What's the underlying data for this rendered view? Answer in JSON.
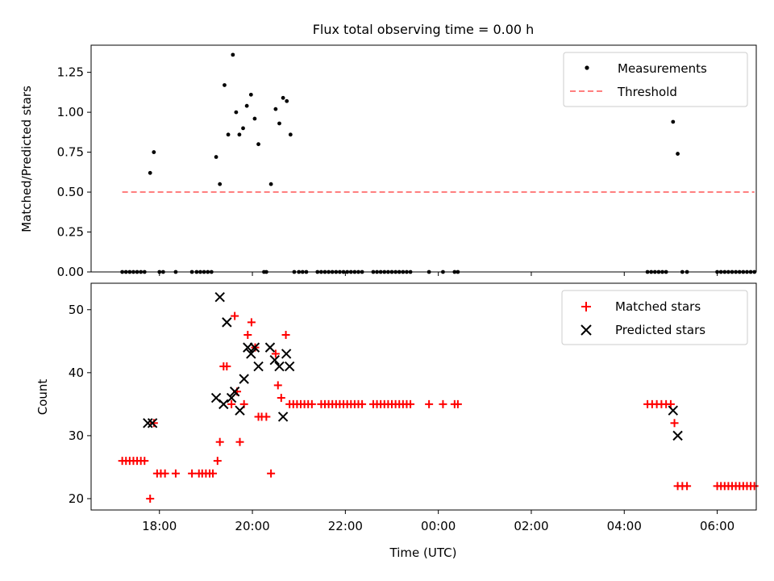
{
  "chart_data": [
    {
      "type": "scatter",
      "title": "Flux total observing time = 0.00 h",
      "xlabel": "",
      "ylabel": "Matched/Predicted stars",
      "ylim": [
        0,
        1.42
      ],
      "xlim_hours": [
        16.53,
        30.84
      ],
      "yticks": [
        "0.00",
        "0.25",
        "0.50",
        "0.75",
        "1.00",
        "1.25"
      ],
      "yticks_values": [
        0,
        0.25,
        0.5,
        0.75,
        1.0,
        1.25
      ],
      "legend": {
        "position": "top-right",
        "entries": [
          "Measurements",
          "Threshold"
        ]
      },
      "threshold": {
        "name": "Threshold",
        "value": 0.5,
        "x_range": [
          17.2,
          30.8
        ],
        "color": "#ff7f7f"
      },
      "series": [
        {
          "name": "Measurements",
          "color": "#000000",
          "marker": "dot",
          "points": [
            [
              17.2,
              0
            ],
            [
              17.28,
              0
            ],
            [
              17.36,
              0
            ],
            [
              17.44,
              0
            ],
            [
              17.52,
              0
            ],
            [
              17.6,
              0
            ],
            [
              17.68,
              0
            ],
            [
              17.8,
              0.62
            ],
            [
              17.88,
              0.75
            ],
            [
              18.0,
              0
            ],
            [
              18.08,
              0
            ],
            [
              18.35,
              0
            ],
            [
              18.7,
              0
            ],
            [
              18.8,
              0
            ],
            [
              18.88,
              0
            ],
            [
              18.96,
              0
            ],
            [
              19.04,
              0
            ],
            [
              19.12,
              0
            ],
            [
              19.22,
              0.72
            ],
            [
              19.3,
              0.55
            ],
            [
              19.4,
              1.17
            ],
            [
              19.48,
              0.86
            ],
            [
              19.58,
              1.36
            ],
            [
              19.65,
              1.0
            ],
            [
              19.72,
              0.86
            ],
            [
              19.8,
              0.9
            ],
            [
              19.88,
              1.04
            ],
            [
              19.97,
              1.11
            ],
            [
              20.05,
              0.96
            ],
            [
              20.13,
              0.8
            ],
            [
              20.25,
              0
            ],
            [
              20.3,
              0
            ],
            [
              20.4,
              0.55
            ],
            [
              20.5,
              1.02
            ],
            [
              20.58,
              0.93
            ],
            [
              20.66,
              1.09
            ],
            [
              20.74,
              1.07
            ],
            [
              20.82,
              0.86
            ],
            [
              20.9,
              0
            ],
            [
              21.0,
              0
            ],
            [
              21.08,
              0
            ],
            [
              21.16,
              0
            ],
            [
              21.4,
              0
            ],
            [
              21.48,
              0
            ],
            [
              21.56,
              0
            ],
            [
              21.64,
              0
            ],
            [
              21.72,
              0
            ],
            [
              21.8,
              0
            ],
            [
              21.88,
              0
            ],
            [
              21.96,
              0
            ],
            [
              22.04,
              0
            ],
            [
              22.12,
              0
            ],
            [
              22.2,
              0
            ],
            [
              22.28,
              0
            ],
            [
              22.36,
              0
            ],
            [
              22.6,
              0
            ],
            [
              22.68,
              0
            ],
            [
              22.76,
              0
            ],
            [
              22.84,
              0
            ],
            [
              22.92,
              0
            ],
            [
              23.0,
              0
            ],
            [
              23.08,
              0
            ],
            [
              23.16,
              0
            ],
            [
              23.24,
              0
            ],
            [
              23.32,
              0
            ],
            [
              23.4,
              0
            ],
            [
              23.8,
              0
            ],
            [
              24.1,
              0
            ],
            [
              24.35,
              0
            ],
            [
              24.42,
              0
            ],
            [
              28.5,
              0
            ],
            [
              28.58,
              0
            ],
            [
              28.66,
              0
            ],
            [
              28.74,
              0
            ],
            [
              28.82,
              0
            ],
            [
              28.9,
              0
            ],
            [
              29.05,
              0.94
            ],
            [
              29.15,
              0.74
            ],
            [
              29.25,
              0
            ],
            [
              29.35,
              0
            ],
            [
              30.0,
              0
            ],
            [
              30.08,
              0
            ],
            [
              30.16,
              0
            ],
            [
              30.24,
              0
            ],
            [
              30.32,
              0
            ],
            [
              30.4,
              0
            ],
            [
              30.48,
              0
            ],
            [
              30.56,
              0
            ],
            [
              30.64,
              0
            ],
            [
              30.72,
              0
            ],
            [
              30.8,
              0
            ]
          ]
        }
      ]
    },
    {
      "type": "scatter",
      "title": "",
      "xlabel": "Time (UTC)",
      "ylabel": "Count",
      "ylim": [
        18.2,
        54.2
      ],
      "xlim_hours": [
        16.53,
        30.84
      ],
      "yticks": [
        "20",
        "30",
        "40",
        "50"
      ],
      "yticks_values": [
        20,
        30,
        40,
        50
      ],
      "xticks": [
        "18:00",
        "20:00",
        "22:00",
        "00:00",
        "02:00",
        "04:00",
        "06:00"
      ],
      "xticks_values": [
        18,
        20,
        22,
        24,
        26,
        28,
        30
      ],
      "legend": {
        "position": "top-right",
        "entries": [
          "Matched stars",
          "Predicted stars"
        ]
      },
      "series": [
        {
          "name": "Matched stars",
          "color": "#ff0000",
          "marker": "plus",
          "points": [
            [
              17.2,
              26
            ],
            [
              17.28,
              26
            ],
            [
              17.36,
              26
            ],
            [
              17.44,
              26
            ],
            [
              17.52,
              26
            ],
            [
              17.6,
              26
            ],
            [
              17.68,
              26
            ],
            [
              17.8,
              20
            ],
            [
              17.88,
              32
            ],
            [
              17.95,
              24
            ],
            [
              18.03,
              24
            ],
            [
              18.12,
              24
            ],
            [
              18.35,
              24
            ],
            [
              18.7,
              24
            ],
            [
              18.85,
              24
            ],
            [
              18.92,
              24
            ],
            [
              19.0,
              24
            ],
            [
              19.08,
              24
            ],
            [
              19.15,
              24
            ],
            [
              19.25,
              26
            ],
            [
              19.3,
              29
            ],
            [
              19.38,
              41
            ],
            [
              19.45,
              41
            ],
            [
              19.55,
              35
            ],
            [
              19.62,
              49
            ],
            [
              19.67,
              37
            ],
            [
              19.73,
              29
            ],
            [
              19.82,
              35
            ],
            [
              19.9,
              46
            ],
            [
              19.98,
              48
            ],
            [
              20.06,
              44
            ],
            [
              20.13,
              33
            ],
            [
              20.2,
              33
            ],
            [
              20.3,
              33
            ],
            [
              20.4,
              24
            ],
            [
              20.5,
              43
            ],
            [
              20.55,
              38
            ],
            [
              20.62,
              36
            ],
            [
              20.72,
              46
            ],
            [
              20.8,
              35
            ],
            [
              20.88,
              35
            ],
            [
              20.96,
              35
            ],
            [
              21.04,
              35
            ],
            [
              21.12,
              35
            ],
            [
              21.2,
              35
            ],
            [
              21.28,
              35
            ],
            [
              21.48,
              35
            ],
            [
              21.56,
              35
            ],
            [
              21.64,
              35
            ],
            [
              21.72,
              35
            ],
            [
              21.8,
              35
            ],
            [
              21.88,
              35
            ],
            [
              21.96,
              35
            ],
            [
              22.04,
              35
            ],
            [
              22.12,
              35
            ],
            [
              22.2,
              35
            ],
            [
              22.28,
              35
            ],
            [
              22.36,
              35
            ],
            [
              22.6,
              35
            ],
            [
              22.68,
              35
            ],
            [
              22.76,
              35
            ],
            [
              22.84,
              35
            ],
            [
              22.92,
              35
            ],
            [
              23.0,
              35
            ],
            [
              23.08,
              35
            ],
            [
              23.16,
              35
            ],
            [
              23.24,
              35
            ],
            [
              23.32,
              35
            ],
            [
              23.4,
              35
            ],
            [
              23.8,
              35
            ],
            [
              24.1,
              35
            ],
            [
              24.35,
              35
            ],
            [
              24.42,
              35
            ],
            [
              28.5,
              35
            ],
            [
              28.6,
              35
            ],
            [
              28.7,
              35
            ],
            [
              28.8,
              35
            ],
            [
              28.9,
              35
            ],
            [
              29.0,
              35
            ],
            [
              29.08,
              32
            ],
            [
              29.15,
              22
            ],
            [
              29.25,
              22
            ],
            [
              29.35,
              22
            ],
            [
              30.0,
              22
            ],
            [
              30.08,
              22
            ],
            [
              30.16,
              22
            ],
            [
              30.24,
              22
            ],
            [
              30.32,
              22
            ],
            [
              30.4,
              22
            ],
            [
              30.48,
              22
            ],
            [
              30.56,
              22
            ],
            [
              30.64,
              22
            ],
            [
              30.72,
              22
            ],
            [
              30.8,
              22
            ]
          ]
        },
        {
          "name": "Predicted stars",
          "color": "#000000",
          "marker": "x",
          "points": [
            [
              17.75,
              32
            ],
            [
              17.85,
              32
            ],
            [
              19.22,
              36
            ],
            [
              19.3,
              52
            ],
            [
              19.38,
              35
            ],
            [
              19.45,
              48
            ],
            [
              19.55,
              36
            ],
            [
              19.62,
              37
            ],
            [
              19.73,
              34
            ],
            [
              19.82,
              39
            ],
            [
              19.9,
              44
            ],
            [
              19.97,
              43
            ],
            [
              20.05,
              44
            ],
            [
              20.13,
              41
            ],
            [
              20.38,
              44
            ],
            [
              20.48,
              42
            ],
            [
              20.58,
              41
            ],
            [
              20.66,
              33
            ],
            [
              20.73,
              43
            ],
            [
              20.8,
              41
            ],
            [
              29.05,
              34
            ],
            [
              29.15,
              30
            ]
          ]
        }
      ]
    }
  ]
}
